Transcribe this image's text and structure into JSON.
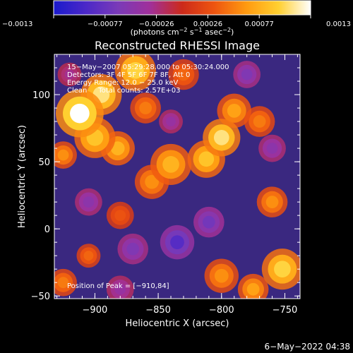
{
  "chart_data": {
    "type": "heatmap",
    "title": "Reconstructed RHESSI Image",
    "xlabel": "Heliocentric X (arcsec)",
    "ylabel": "Heliocentric Y (arcsec)",
    "xlim": [
      -932,
      -738
    ],
    "ylim": [
      -52,
      130
    ],
    "xticks": [
      -900,
      -850,
      -800,
      -750
    ],
    "yticks": [
      -50,
      0,
      50,
      100
    ],
    "xtick_labels": [
      "−900",
      "−850",
      "−800",
      "−750"
    ],
    "ytick_labels": [
      "−50",
      "0",
      "50",
      "100"
    ],
    "colorbar": {
      "range": [
        -0.0013,
        0.0013
      ],
      "tick_labels": [
        "−0.0013",
        "−0.00077",
        "−0.00026",
        "0.00026",
        "0.00077",
        "0.0013"
      ],
      "unit_prefix": "(photons cm",
      "unit_exp1": "−2",
      "unit_mid": " s",
      "unit_exp2": "−1",
      "unit_mid2": " asec",
      "unit_exp3": "−2",
      "unit_suffix": ")",
      "colormap": [
        "#1a1acc",
        "#4b28c8",
        "#7a3ab8",
        "#a0309a",
        "#cc2a1a",
        "#ee5510",
        "#ff9a10",
        "#ffd030",
        "#ffffff"
      ]
    },
    "annotations": [
      "15−May−2007 05:29:28.000 to 05:30:24.000",
      "Detectors: 3F 4F 5F 6F 7F 8F, Att 0",
      "Energy Range: 12.0 − 25.0 keV",
      "Clean     Total counts: 2.57E+03"
    ],
    "peak_label": "Position of Peak = [−910,84]",
    "peak": [
      -910,
      84
    ],
    "blobs": [
      {
        "x": -912,
        "y": 86,
        "r": 14,
        "v": 0.0013
      },
      {
        "x": -895,
        "y": 100,
        "r": 12,
        "v": 0.0011
      },
      {
        "x": -868,
        "y": 118,
        "r": 12,
        "v": 0.001
      },
      {
        "x": -900,
        "y": 68,
        "r": 12,
        "v": 0.0009
      },
      {
        "x": -882,
        "y": 60,
        "r": 10,
        "v": 0.0008
      },
      {
        "x": -925,
        "y": 55,
        "r": 8,
        "v": 0.0006
      },
      {
        "x": -860,
        "y": 90,
        "r": 9,
        "v": 0.0005
      },
      {
        "x": -840,
        "y": 48,
        "r": 12,
        "v": 0.0008
      },
      {
        "x": -812,
        "y": 52,
        "r": 11,
        "v": 0.0009
      },
      {
        "x": -800,
        "y": 68,
        "r": 11,
        "v": 0.0011
      },
      {
        "x": -790,
        "y": 88,
        "r": 10,
        "v": 0.0007
      },
      {
        "x": -770,
        "y": 80,
        "r": 9,
        "v": 0.0005
      },
      {
        "x": -855,
        "y": 35,
        "r": 10,
        "v": 0.0006
      },
      {
        "x": -830,
        "y": 115,
        "r": 9,
        "v": 0.0004
      },
      {
        "x": -760,
        "y": 20,
        "r": 9,
        "v": 0.0006
      },
      {
        "x": -752,
        "y": -30,
        "r": 12,
        "v": 0.001
      },
      {
        "x": -775,
        "y": -45,
        "r": 9,
        "v": 0.0007
      },
      {
        "x": -800,
        "y": -35,
        "r": 10,
        "v": 0.0006
      },
      {
        "x": -925,
        "y": -40,
        "r": 8,
        "v": 0.0005
      },
      {
        "x": -905,
        "y": -20,
        "r": 7,
        "v": 0.0004
      },
      {
        "x": -880,
        "y": 10,
        "r": 8,
        "v": 0.0003
      },
      {
        "x": -835,
        "y": -10,
        "r": 10,
        "v": -0.0009
      },
      {
        "x": -810,
        "y": 5,
        "r": 9,
        "v": -0.0007
      },
      {
        "x": -870,
        "y": -15,
        "r": 9,
        "v": -0.0006
      },
      {
        "x": -905,
        "y": 20,
        "r": 8,
        "v": -0.0005
      },
      {
        "x": -760,
        "y": 60,
        "r": 8,
        "v": -0.0005
      },
      {
        "x": -780,
        "y": 115,
        "r": 8,
        "v": -0.0006
      },
      {
        "x": -840,
        "y": 80,
        "r": 7,
        "v": -0.0004
      },
      {
        "x": -880,
        "y": -45,
        "r": 8,
        "v": -0.0004
      },
      {
        "x": -920,
        "y": 115,
        "r": 7,
        "v": -0.0003
      }
    ]
  },
  "footer": {
    "timestamp": "6−May−2022 04:38"
  }
}
